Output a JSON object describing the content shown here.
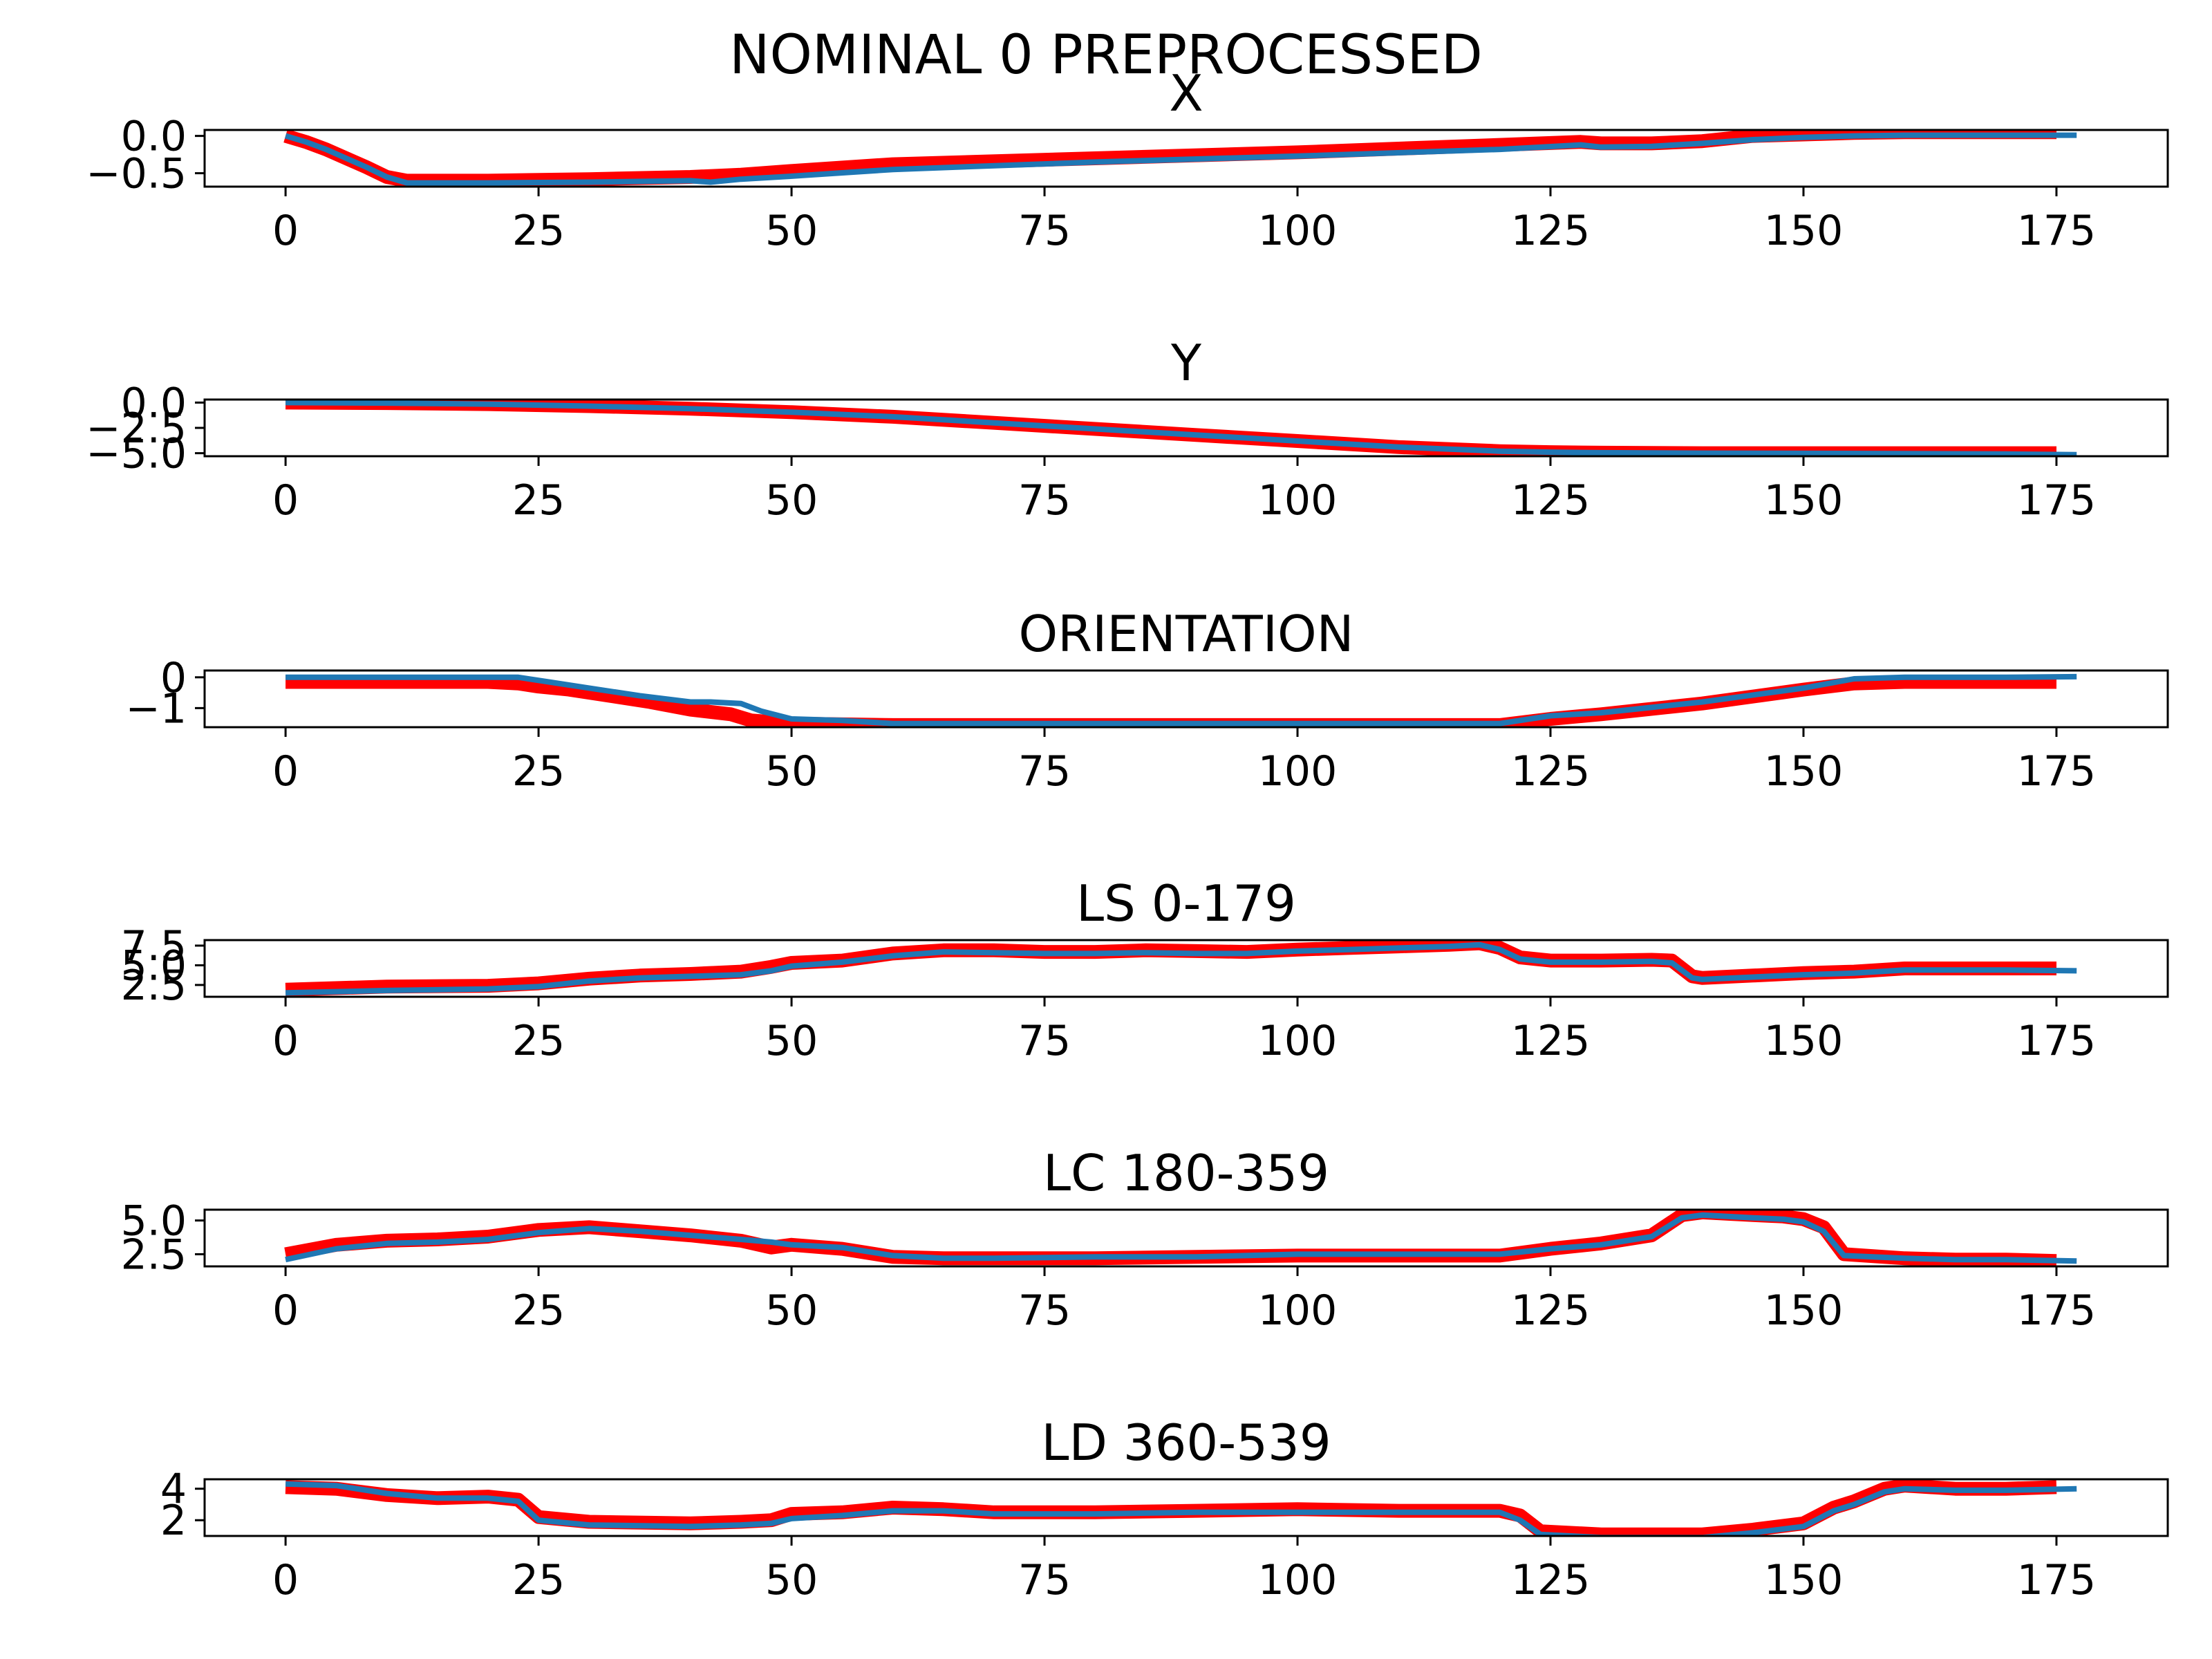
{
  "figure": {
    "suptitle": "NOMINAL 0 PREPROCESSED"
  },
  "colors": {
    "band": "#ff0000",
    "line": "#1f77b4",
    "axes": "#000000"
  },
  "chart_data": [
    {
      "type": "line",
      "title": "X",
      "xlim": [
        -8,
        186
      ],
      "ylim": [
        -0.68,
        0.08
      ],
      "xticks": [
        0,
        25,
        50,
        75,
        100,
        125,
        150,
        175
      ],
      "xtick_labels": [
        "0",
        "25",
        "50",
        "75",
        "100",
        "125",
        "150",
        "175"
      ],
      "yticks": [
        0.0,
        -0.5
      ],
      "ytick_labels": [
        "0.0",
        "−0.5"
      ],
      "series": [
        {
          "style": "band",
          "x": [
            0,
            2,
            4,
            6,
            8,
            10,
            12,
            20,
            30,
            40,
            45,
            50,
            60,
            80,
            100,
            120,
            128,
            130,
            135,
            140,
            145,
            150,
            155,
            160,
            165,
            170,
            175
          ],
          "y": [
            0.0,
            -0.08,
            -0.18,
            -0.3,
            -0.42,
            -0.55,
            -0.6,
            -0.6,
            -0.58,
            -0.55,
            -0.52,
            -0.47,
            -0.38,
            -0.3,
            -0.22,
            -0.12,
            -0.08,
            -0.1,
            -0.1,
            -0.07,
            0.0,
            0.02,
            0.04,
            0.05,
            0.05,
            0.05,
            0.05
          ]
        },
        {
          "style": "line",
          "x": [
            0,
            2,
            4,
            6,
            8,
            10,
            12,
            20,
            30,
            40,
            42,
            45,
            50,
            60,
            80,
            100,
            120,
            128,
            130,
            135,
            140,
            145,
            150,
            155,
            160,
            165,
            170,
            177
          ],
          "y": [
            0.0,
            -0.08,
            -0.18,
            -0.3,
            -0.42,
            -0.55,
            -0.63,
            -0.63,
            -0.62,
            -0.6,
            -0.62,
            -0.58,
            -0.54,
            -0.45,
            -0.35,
            -0.27,
            -0.18,
            -0.12,
            -0.15,
            -0.14,
            -0.1,
            -0.05,
            -0.02,
            0.0,
            0.01,
            0.01,
            0.01,
            0.01
          ]
        }
      ]
    },
    {
      "type": "line",
      "title": "Y",
      "xlim": [
        -8,
        186
      ],
      "ylim": [
        -5.3,
        0.3
      ],
      "xticks": [
        0,
        25,
        50,
        75,
        100,
        125,
        150,
        175
      ],
      "xtick_labels": [
        "0",
        "25",
        "50",
        "75",
        "100",
        "125",
        "150",
        "175"
      ],
      "yticks": [
        0.0,
        -2.5,
        -5.0
      ],
      "ytick_labels": [
        "0.0",
        "−2.5",
        "−5.0"
      ],
      "series": [
        {
          "style": "band",
          "x": [
            0,
            10,
            20,
            30,
            40,
            50,
            60,
            70,
            80,
            90,
            100,
            110,
            120,
            125,
            130,
            140,
            150,
            160,
            175
          ],
          "y": [
            0.0,
            -0.05,
            -0.15,
            -0.35,
            -0.6,
            -0.95,
            -1.4,
            -2.0,
            -2.6,
            -3.2,
            -3.8,
            -4.4,
            -4.8,
            -4.9,
            -4.95,
            -5.0,
            -5.0,
            -5.0,
            -5.0
          ]
        },
        {
          "style": "line",
          "x": [
            0,
            10,
            20,
            30,
            40,
            50,
            60,
            70,
            80,
            90,
            100,
            110,
            120,
            125,
            130,
            140,
            150,
            160,
            170,
            177
          ],
          "y": [
            0.0,
            -0.05,
            -0.15,
            -0.35,
            -0.6,
            -0.95,
            -1.4,
            -2.0,
            -2.6,
            -3.2,
            -3.8,
            -4.4,
            -4.8,
            -4.9,
            -4.95,
            -5.0,
            -5.02,
            -5.05,
            -5.08,
            -5.15
          ]
        }
      ]
    },
    {
      "type": "line",
      "title": "ORIENTATION",
      "xlim": [
        -8,
        186
      ],
      "ylim": [
        -1.62,
        0.22
      ],
      "xticks": [
        0,
        25,
        50,
        75,
        100,
        125,
        150,
        175
      ],
      "xtick_labels": [
        "0",
        "25",
        "50",
        "75",
        "100",
        "125",
        "150",
        "175"
      ],
      "yticks": [
        0,
        -1
      ],
      "ytick_labels": [
        "0",
        "−1"
      ],
      "series": [
        {
          "style": "band",
          "x": [
            0,
            10,
            20,
            23,
            25,
            28,
            32,
            36,
            40,
            44,
            46,
            50,
            60,
            80,
            100,
            120,
            125,
            130,
            140,
            150,
            155,
            160,
            175
          ],
          "y": [
            -0.15,
            -0.15,
            -0.15,
            -0.2,
            -0.3,
            -0.4,
            -0.6,
            -0.8,
            -1.05,
            -1.2,
            -1.4,
            -1.5,
            -1.55,
            -1.55,
            -1.55,
            -1.55,
            -1.35,
            -1.2,
            -0.85,
            -0.4,
            -0.2,
            -0.15,
            -0.15
          ]
        },
        {
          "style": "line",
          "x": [
            0,
            10,
            20,
            23,
            26,
            30,
            35,
            40,
            42,
            45,
            47,
            50,
            55,
            60,
            80,
            100,
            120,
            125,
            130,
            140,
            150,
            155,
            160,
            170,
            177
          ],
          "y": [
            0.0,
            0.0,
            0.0,
            0.0,
            -0.15,
            -0.35,
            -0.6,
            -0.8,
            -0.8,
            -0.85,
            -1.1,
            -1.35,
            -1.4,
            -1.5,
            -1.5,
            -1.5,
            -1.5,
            -1.25,
            -1.15,
            -0.8,
            -0.35,
            -0.05,
            0.0,
            0.0,
            0.02
          ]
        }
      ]
    },
    {
      "type": "line",
      "title": "LS 0-179",
      "xlim": [
        -8,
        186
      ],
      "ylim": [
        1.0,
        8.2
      ],
      "xticks": [
        0,
        25,
        50,
        75,
        100,
        125,
        150,
        175
      ],
      "xtick_labels": [
        "0",
        "25",
        "50",
        "75",
        "100",
        "125",
        "150",
        "175"
      ],
      "yticks": [
        7.5,
        5.0,
        2.5
      ],
      "ytick_labels": [
        "7.5",
        "5.0",
        "2.5"
      ],
      "series": [
        {
          "style": "band",
          "x": [
            0,
            10,
            20,
            25,
            30,
            35,
            40,
            45,
            48,
            50,
            55,
            60,
            65,
            70,
            75,
            80,
            85,
            90,
            95,
            100,
            105,
            110,
            115,
            118,
            120,
            122,
            125,
            130,
            135,
            137,
            139,
            140,
            145,
            150,
            155,
            160,
            165,
            170,
            175
          ],
          "y": [
            1.9,
            2.3,
            2.4,
            2.7,
            3.3,
            3.7,
            3.9,
            4.2,
            4.8,
            5.3,
            5.6,
            6.5,
            6.9,
            6.9,
            6.7,
            6.7,
            6.9,
            6.8,
            6.7,
            7.0,
            7.2,
            7.4,
            7.6,
            7.8,
            7.2,
            6.0,
            5.6,
            5.6,
            5.7,
            5.6,
            3.6,
            3.4,
            3.7,
            4.0,
            4.2,
            4.6,
            4.6,
            4.6,
            4.6
          ]
        },
        {
          "style": "line",
          "x": [
            0,
            10,
            20,
            25,
            30,
            35,
            40,
            45,
            48,
            50,
            55,
            60,
            65,
            70,
            75,
            80,
            85,
            90,
            95,
            100,
            105,
            110,
            115,
            118,
            120,
            122,
            125,
            130,
            135,
            137,
            139,
            140,
            145,
            150,
            155,
            160,
            165,
            170,
            177
          ],
          "y": [
            1.5,
            1.8,
            2.0,
            2.3,
            3.0,
            3.4,
            3.6,
            3.8,
            4.3,
            4.9,
            5.4,
            6.2,
            6.7,
            6.6,
            6.5,
            6.5,
            6.6,
            6.5,
            6.5,
            6.8,
            7.0,
            7.2,
            7.4,
            7.6,
            7.0,
            5.8,
            5.4,
            5.4,
            5.5,
            5.3,
            3.4,
            3.2,
            3.5,
            3.8,
            4.0,
            4.4,
            4.4,
            4.4,
            4.3
          ]
        }
      ]
    },
    {
      "type": "line",
      "title": "LC 180-359",
      "xlim": [
        -8,
        186
      ],
      "ylim": [
        1.6,
        5.8
      ],
      "xticks": [
        0,
        25,
        50,
        75,
        100,
        125,
        150,
        175
      ],
      "xtick_labels": [
        "0",
        "25",
        "50",
        "75",
        "100",
        "125",
        "150",
        "175"
      ],
      "yticks": [
        5.0,
        2.5
      ],
      "ytick_labels": [
        "5.0",
        "2.5"
      ],
      "series": [
        {
          "style": "band",
          "x": [
            0,
            5,
            10,
            15,
            20,
            25,
            30,
            35,
            40,
            45,
            48,
            50,
            55,
            60,
            65,
            70,
            80,
            90,
            100,
            110,
            120,
            125,
            130,
            135,
            138,
            140,
            145,
            148,
            150,
            152,
            154,
            160,
            165,
            170,
            175
          ],
          "y": [
            2.5,
            3.2,
            3.5,
            3.6,
            3.8,
            4.3,
            4.5,
            4.2,
            3.9,
            3.5,
            3.0,
            3.2,
            2.9,
            2.3,
            2.2,
            2.2,
            2.2,
            2.3,
            2.4,
            2.4,
            2.4,
            2.9,
            3.3,
            3.9,
            5.4,
            5.6,
            5.4,
            5.3,
            5.1,
            4.5,
            2.5,
            2.2,
            2.1,
            2.1,
            2.0
          ]
        },
        {
          "style": "line",
          "x": [
            0,
            5,
            10,
            15,
            20,
            25,
            30,
            35,
            40,
            45,
            48,
            50,
            55,
            60,
            65,
            70,
            80,
            90,
            100,
            110,
            120,
            125,
            130,
            135,
            138,
            140,
            145,
            148,
            150,
            152,
            154,
            160,
            165,
            170,
            177
          ],
          "y": [
            2.1,
            2.9,
            3.3,
            3.4,
            3.6,
            4.1,
            4.4,
            4.2,
            3.9,
            3.6,
            3.4,
            3.2,
            3.0,
            2.4,
            2.2,
            2.2,
            2.3,
            2.3,
            2.5,
            2.5,
            2.5,
            2.9,
            3.2,
            3.8,
            5.2,
            5.4,
            5.2,
            5.1,
            4.9,
            4.2,
            2.4,
            2.2,
            2.1,
            2.1,
            2.0
          ]
        }
      ]
    },
    {
      "type": "line",
      "title": "LD 360-539",
      "xlim": [
        -8,
        186
      ],
      "ylim": [
        1.0,
        4.6
      ],
      "xticks": [
        0,
        25,
        50,
        75,
        100,
        125,
        150,
        175
      ],
      "xtick_labels": [
        "0",
        "25",
        "50",
        "75",
        "100",
        "125",
        "150",
        "175"
      ],
      "yticks": [
        4,
        2
      ],
      "ytick_labels": [
        "4",
        "2"
      ],
      "series": [
        {
          "style": "band",
          "x": [
            0,
            5,
            10,
            15,
            20,
            23,
            25,
            30,
            40,
            45,
            48,
            50,
            55,
            60,
            65,
            70,
            80,
            90,
            100,
            110,
            120,
            122,
            124,
            130,
            140,
            145,
            150,
            153,
            155,
            158,
            160,
            165,
            170,
            175
          ],
          "y": [
            4.1,
            4.0,
            3.6,
            3.4,
            3.5,
            3.3,
            2.2,
            1.9,
            1.8,
            1.9,
            2.0,
            2.4,
            2.5,
            2.8,
            2.7,
            2.5,
            2.5,
            2.6,
            2.7,
            2.6,
            2.6,
            2.3,
            1.3,
            1.1,
            1.1,
            1.4,
            1.8,
            2.8,
            3.2,
            4.0,
            4.2,
            4.0,
            4.0,
            4.1
          ]
        },
        {
          "style": "line",
          "x": [
            0,
            5,
            10,
            15,
            20,
            23,
            25,
            30,
            40,
            45,
            48,
            50,
            55,
            60,
            65,
            70,
            80,
            90,
            100,
            110,
            120,
            122,
            124,
            130,
            140,
            145,
            150,
            153,
            155,
            158,
            160,
            165,
            170,
            177
          ],
          "y": [
            4.3,
            4.2,
            3.7,
            3.4,
            3.4,
            3.2,
            2.0,
            1.7,
            1.6,
            1.7,
            1.8,
            2.1,
            2.3,
            2.6,
            2.6,
            2.4,
            2.4,
            2.5,
            2.5,
            2.5,
            2.5,
            2.0,
            1.1,
            0.9,
            0.9,
            1.2,
            1.6,
            2.6,
            3.0,
            3.8,
            4.0,
            3.9,
            3.9,
            4.0
          ]
        }
      ]
    }
  ]
}
